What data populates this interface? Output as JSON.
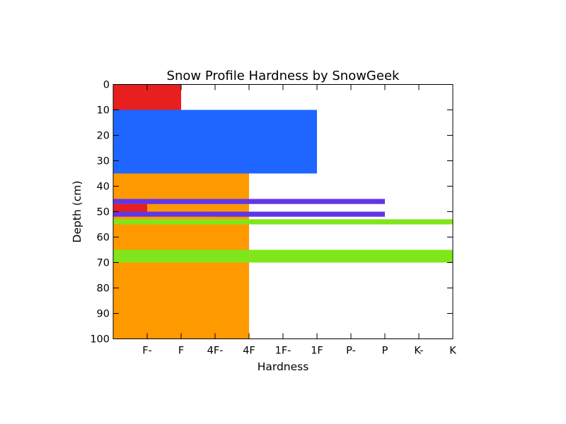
{
  "chart_data": {
    "type": "bar",
    "orientation": "horizontal",
    "title": "Snow Profile Hardness by SnowGeek",
    "xlabel": "Hardness",
    "ylabel": "Depth (cm)",
    "x_tick_labels": [
      "F-",
      "F",
      "4F-",
      "4F",
      "1F-",
      "1F",
      "P-",
      "P",
      "K-",
      "K"
    ],
    "x_tick_values": [
      1,
      2,
      3,
      4,
      5,
      6,
      7,
      8,
      9,
      10
    ],
    "xlim": [
      0,
      10
    ],
    "y_tick_values": [
      0,
      10,
      20,
      30,
      40,
      50,
      60,
      70,
      80,
      90,
      100
    ],
    "ylim": [
      0,
      100
    ],
    "y_inverted": true,
    "grid": false,
    "layers": [
      {
        "top": 0,
        "bottom": 10,
        "hardness": 2,
        "color": "#e81f1f"
      },
      {
        "top": 10,
        "bottom": 35,
        "hardness": 6,
        "color": "#1e66ff"
      },
      {
        "top": 35,
        "bottom": 100,
        "hardness": 4,
        "color": "#ff9900"
      },
      {
        "top": 47,
        "bottom": 52,
        "hardness": 1,
        "color": "#e81f1f"
      },
      {
        "top": 45,
        "bottom": 47,
        "hardness": 8,
        "color": "#6236e6"
      },
      {
        "top": 50,
        "bottom": 52,
        "hardness": 8,
        "color": "#6236e6"
      },
      {
        "top": 52,
        "bottom": 65,
        "hardness": 3,
        "color": "#ff9900"
      },
      {
        "top": 53,
        "bottom": 55,
        "hardness": 10,
        "color": "#80e61c"
      },
      {
        "top": 65,
        "bottom": 70,
        "hardness": 10,
        "color": "#80e61c"
      }
    ]
  }
}
